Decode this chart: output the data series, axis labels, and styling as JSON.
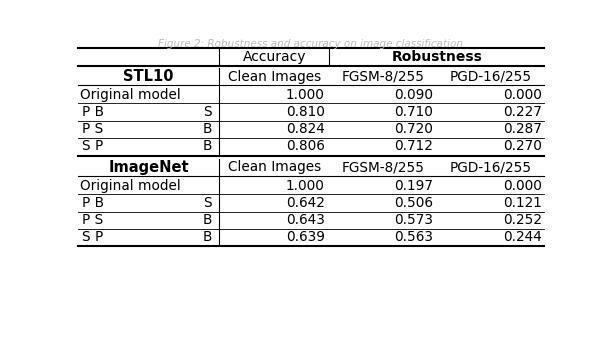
{
  "title_text": "Figure 2: Robustness and accuracy on image classification",
  "stl10_rows": [
    [
      "Original model",
      "1.000",
      "0.090",
      "0.000"
    ],
    [
      "P B        S",
      "0.810",
      "0.710",
      "0.227"
    ],
    [
      "P S        B",
      "0.824",
      "0.720",
      "0.287"
    ],
    [
      "S P        B",
      "0.806",
      "0.712",
      "0.270"
    ]
  ],
  "imagenet_rows": [
    [
      "Original model",
      "1.000",
      "0.197",
      "0.000"
    ],
    [
      "P B        S",
      "0.642",
      "0.506",
      "0.121"
    ],
    [
      "P S        B",
      "0.643",
      "0.573",
      "0.252"
    ],
    [
      "S P        B",
      "0.639",
      "0.563",
      "0.244"
    ]
  ],
  "figsize": [
    6.06,
    3.4
  ],
  "dpi": 100,
  "bg_color": "#ffffff"
}
